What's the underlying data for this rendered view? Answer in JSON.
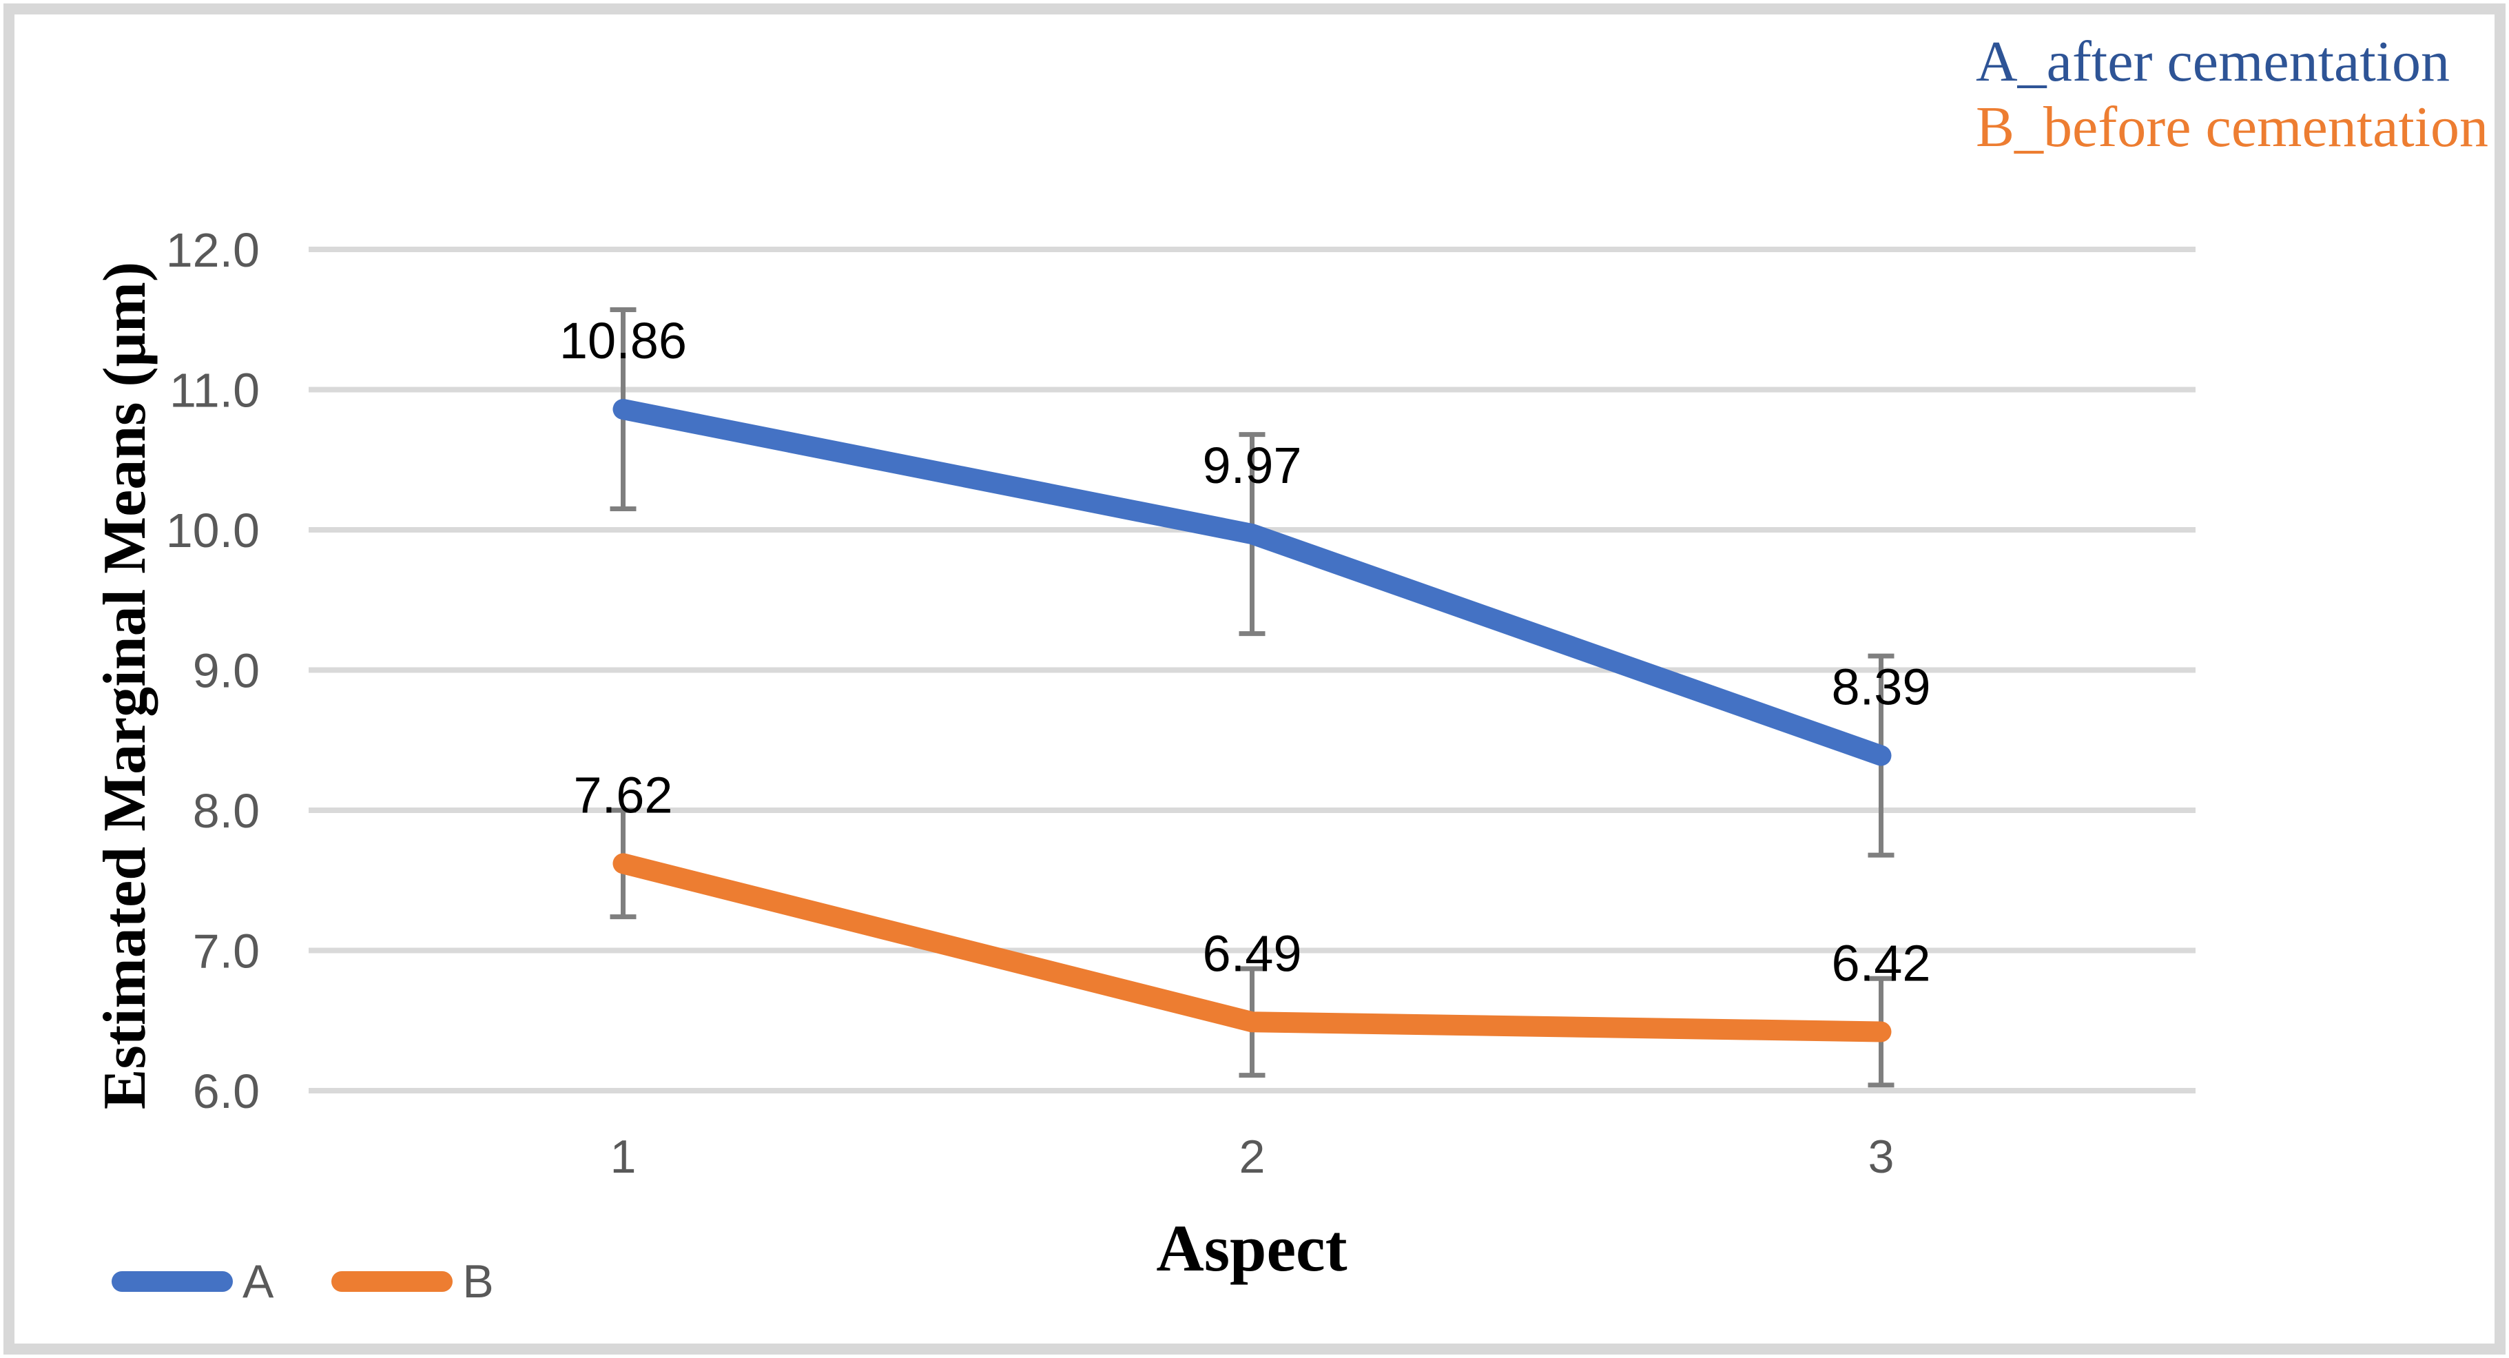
{
  "chart_data": {
    "type": "line",
    "categories": [
      "1",
      "2",
      "3"
    ],
    "series": [
      {
        "name": "A",
        "legend_label": "A_after cementation",
        "color": "#4472C4",
        "values": [
          10.86,
          9.97,
          8.39
        ],
        "error": [
          0.71,
          0.71,
          0.71
        ],
        "point_labels": [
          "10.86",
          "9.97",
          "8.39"
        ]
      },
      {
        "name": "B",
        "legend_label": "B_before cementation",
        "color": "#ED7D31",
        "values": [
          7.62,
          6.49,
          6.42
        ],
        "error": [
          0.38,
          0.38,
          0.38
        ],
        "point_labels": [
          "7.62",
          "6.49",
          "6.42"
        ]
      }
    ],
    "xlabel": "Aspect",
    "ylabel": "Estimated Marginal Means (μm)",
    "ylim": [
      6.0,
      12.0
    ],
    "yticks": [
      "6.0",
      "7.0",
      "8.0",
      "9.0",
      "10.0",
      "11.0",
      "12.0"
    ],
    "grid": "horizontal",
    "legend_positions": [
      "top-right",
      "bottom-left"
    ]
  },
  "axis": {
    "x_title": "Aspect",
    "y_title": "Estimated Marginal Means (μm)",
    "x_ticks": [
      "1",
      "2",
      "3"
    ]
  },
  "legend_top": {
    "items": [
      {
        "label": "A_after cementation",
        "color": "#2E5496"
      },
      {
        "label": "B_before cementation",
        "color": "#ED7D31"
      }
    ]
  },
  "legend_bottom": {
    "items": [
      {
        "label": "A",
        "color": "#4472C4"
      },
      {
        "label": "B",
        "color": "#ED7D31"
      }
    ]
  },
  "colors": {
    "series_a": "#4472C4",
    "series_b": "#ED7D31",
    "legend_text_a": "#2E5496",
    "legend_text_b": "#ED7D31",
    "tick_label": "#595959",
    "data_label": "#000000",
    "error_bar": "#7F7F7F",
    "gridline": "#D9D9D9",
    "frame_border": "#D8D8D8"
  }
}
